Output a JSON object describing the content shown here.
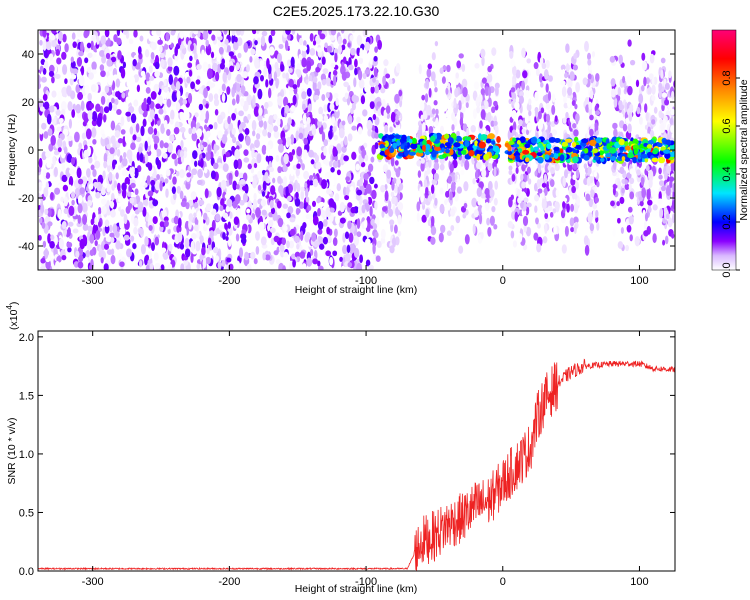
{
  "title": "C2E5.2025.173.22.10.G30",
  "chart_data": [
    {
      "type": "heatmap",
      "title": "C2E5.2025.173.22.10.G30",
      "xlabel": "Height of straight line (km)",
      "ylabel": "Frequency (Hz)",
      "xlim": [
        -340,
        126
      ],
      "ylim": [
        -50,
        50
      ],
      "xticks": [
        "-300",
        "-200",
        "-100",
        "0",
        "100"
      ],
      "yticks": [
        "-40",
        "-20",
        "0",
        "20",
        "40"
      ],
      "colorbar": {
        "label": "Normalized spectral amplitude",
        "range": [
          0.0,
          1.0
        ],
        "ticks": [
          "0.0",
          "0.2",
          "0.4",
          "0.6",
          "0.8"
        ],
        "colors": [
          "#ffffff",
          "#8a00ff",
          "#0000ff",
          "#00e5ff",
          "#00ff00",
          "#ffff00",
          "#ff8800",
          "#ff0000",
          "#ff0077"
        ]
      },
      "description_regions": [
        {
          "x_range": [
            -340,
            -90
          ],
          "f_range": [
            -50,
            50
          ],
          "amplitude": [
            0.0,
            0.15
          ]
        },
        {
          "x_range": [
            -90,
            126
          ],
          "f_range": [
            -5,
            5
          ],
          "amplitude": [
            0.2,
            0.9
          ]
        },
        {
          "x_range": [
            -90,
            126
          ],
          "f_range": [
            -45,
            45
          ],
          "amplitude": [
            0.0,
            0.12
          ]
        }
      ]
    },
    {
      "type": "line",
      "xlabel": "Height of straight line (km)",
      "ylabel": "SNR (10 * v/v)",
      "y_multiplier": "(x10",
      "y_multiplier_exp": "4",
      "xlim": [
        -340,
        126
      ],
      "ylim": [
        0,
        2.05
      ],
      "xticks": [
        "-300",
        "-200",
        "-100",
        "0",
        "100"
      ],
      "yticks": [
        "0.0",
        "0.5",
        "1.0",
        "1.5",
        "2.0"
      ],
      "color": "#ee2222",
      "series": [
        {
          "x": [
            -340,
            -300,
            -200,
            -100,
            -70,
            -60,
            -50,
            -40,
            -30,
            -20,
            -10,
            0,
            10,
            20,
            25,
            30,
            40,
            50,
            60,
            80,
            100,
            110,
            126
          ],
          "y": [
            0.02,
            0.02,
            0.02,
            0.02,
            0.02,
            0.25,
            0.3,
            0.4,
            0.45,
            0.55,
            0.6,
            0.75,
            0.9,
            1.05,
            1.3,
            1.45,
            1.6,
            1.7,
            1.75,
            1.77,
            1.77,
            1.73,
            1.72
          ]
        }
      ]
    }
  ]
}
